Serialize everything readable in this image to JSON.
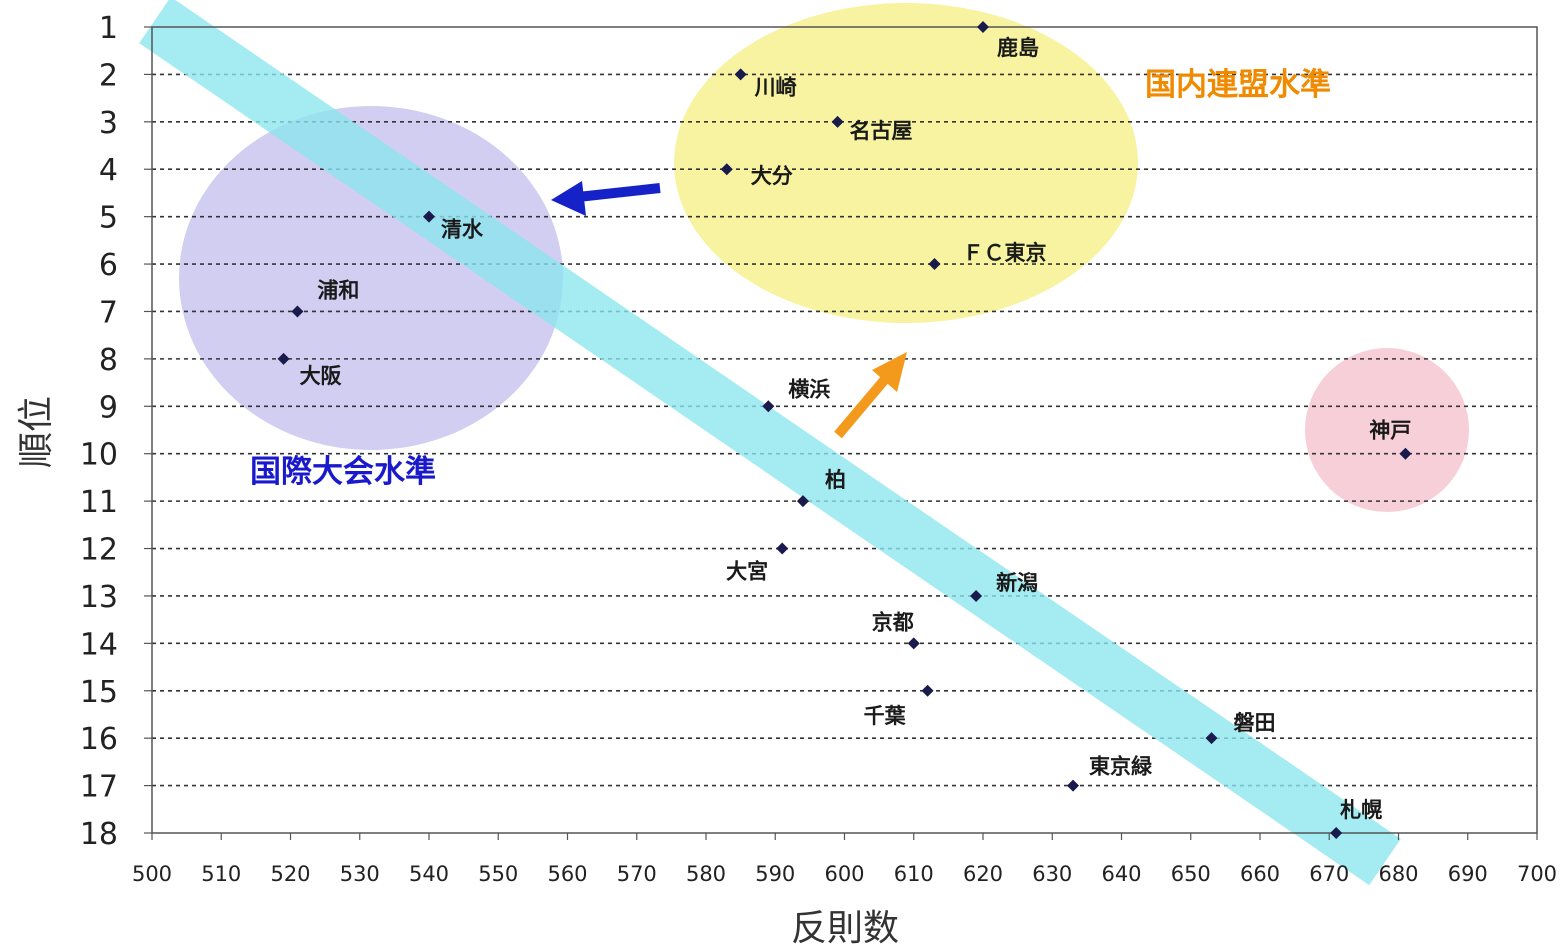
{
  "chart_data": {
    "type": "scatter",
    "xlabel": "反則数",
    "ylabel": "順位",
    "xlim": [
      500,
      700
    ],
    "ylim": [
      1,
      18
    ],
    "y_inverted": true,
    "x_ticks": [
      500,
      510,
      520,
      530,
      540,
      550,
      560,
      570,
      580,
      590,
      600,
      610,
      620,
      630,
      640,
      650,
      660,
      670,
      680,
      690,
      700
    ],
    "y_ticks": [
      1,
      2,
      3,
      4,
      5,
      6,
      7,
      8,
      9,
      10,
      11,
      12,
      13,
      14,
      15,
      16,
      17,
      18
    ],
    "grid": "horizontal dashed",
    "point_color": "#1a1a4d",
    "points": [
      {
        "label": "鹿島",
        "x": 620,
        "y": 1
      },
      {
        "label": "川崎",
        "x": 585,
        "y": 2
      },
      {
        "label": "名古屋",
        "x": 599,
        "y": 3
      },
      {
        "label": "大分",
        "x": 583,
        "y": 4
      },
      {
        "label": "清水",
        "x": 540,
        "y": 5
      },
      {
        "label": "ＦＣ東京",
        "x": 613,
        "y": 6
      },
      {
        "label": "浦和",
        "x": 521,
        "y": 7
      },
      {
        "label": "大阪",
        "x": 519,
        "y": 8
      },
      {
        "label": "横浜",
        "x": 589,
        "y": 9
      },
      {
        "label": "神戸",
        "x": 681,
        "y": 10
      },
      {
        "label": "柏",
        "x": 594,
        "y": 11
      },
      {
        "label": "大宮",
        "x": 591,
        "y": 12
      },
      {
        "label": "新潟",
        "x": 619,
        "y": 13
      },
      {
        "label": "京都",
        "x": 610,
        "y": 14
      },
      {
        "label": "千葉",
        "x": 612,
        "y": 15
      },
      {
        "label": "磐田",
        "x": 653,
        "y": 16
      },
      {
        "label": "東京緑",
        "x": 633,
        "y": 17
      },
      {
        "label": "札幌",
        "x": 671,
        "y": 18
      }
    ],
    "annotations": [
      {
        "text": "国内連盟水準",
        "color": "#f08a00"
      },
      {
        "text": "国際大会水準",
        "color": "#1a1acc"
      }
    ],
    "zone_colors": {
      "domestic": "#f7f3a0",
      "international": "#c9c6ef",
      "outlier": "#f7cfd9",
      "trend_band": "#8ce6ee",
      "arrow_blue": "#1522c8",
      "arrow_orange": "#f39a1c"
    }
  }
}
